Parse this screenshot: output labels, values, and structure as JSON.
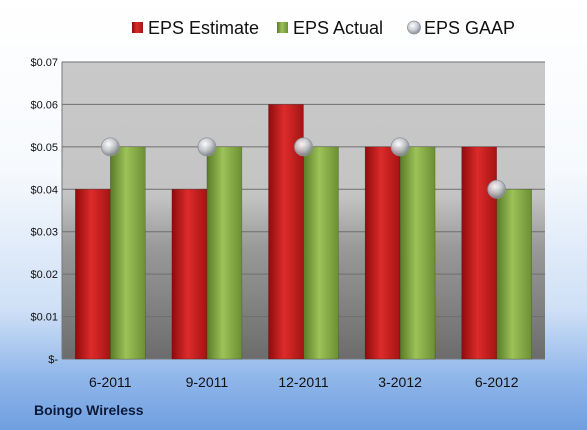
{
  "chart_data": {
    "type": "bar",
    "categories": [
      "6-2011",
      "9-2011",
      "12-2011",
      "3-2012",
      "6-2012"
    ],
    "series": [
      {
        "name": "EPS Estimate",
        "kind": "bar",
        "color": "#cc1f1f",
        "values": [
          0.04,
          0.04,
          0.06,
          0.05,
          0.05
        ]
      },
      {
        "name": "EPS Actual",
        "kind": "bar",
        "color": "#8bb04a",
        "values": [
          0.05,
          0.05,
          0.05,
          0.05,
          0.04
        ]
      },
      {
        "name": "EPS GAAP",
        "kind": "marker",
        "color": "#b8bcc4",
        "values": [
          0.05,
          0.05,
          0.05,
          0.05,
          0.04
        ]
      }
    ],
    "ylim": [
      0,
      0.07
    ],
    "yticks": [
      {
        "value": 0,
        "label": "$-"
      },
      {
        "value": 0.01,
        "label": "$0.01"
      },
      {
        "value": 0.02,
        "label": "$0.02"
      },
      {
        "value": 0.03,
        "label": "$0.03"
      },
      {
        "value": 0.04,
        "label": "$0.04"
      },
      {
        "value": 0.05,
        "label": "$0.05"
      },
      {
        "value": 0.06,
        "label": "$0.06"
      },
      {
        "value": 0.07,
        "label": "$0.07"
      }
    ],
    "grid": true,
    "legend_position": "top"
  },
  "company": "Boingo Wireless"
}
